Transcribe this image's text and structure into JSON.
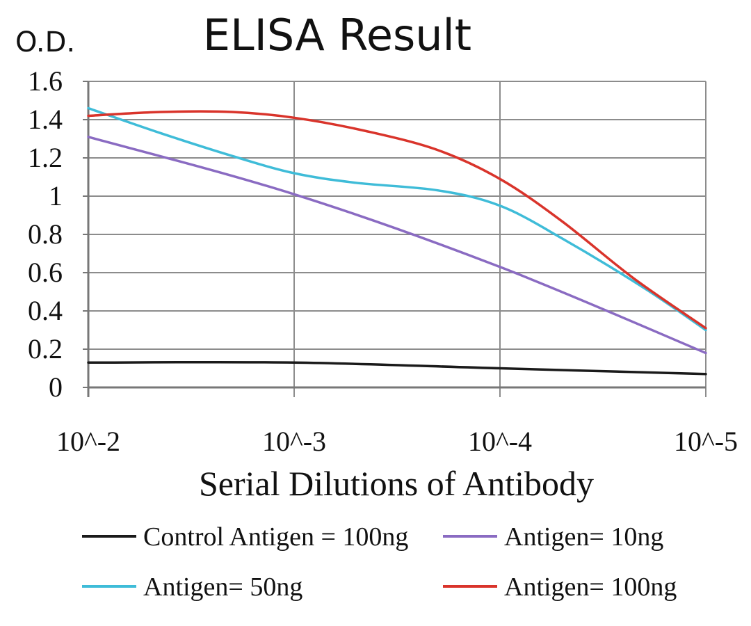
{
  "chart_data": {
    "type": "line",
    "title": "ELISA Result",
    "ylabel": "O.D.",
    "xlabel": "Serial Dilutions of Antibody",
    "categories": [
      "10^-2",
      "10^-3",
      "10^-4",
      "10^-5"
    ],
    "y_ticks": [
      "0",
      "0.2",
      "0.4",
      "0.6",
      "0.8",
      "1",
      "1.2",
      "1.4",
      "1.6"
    ],
    "ylim": [
      0,
      1.6
    ],
    "grid": true,
    "legend_position": "bottom",
    "series": [
      {
        "name": "Control Antigen = 100ng",
        "color": "#1a1a1a",
        "x": [
          0,
          1,
          2,
          3
        ],
        "values": [
          0.13,
          0.13,
          0.1,
          0.07
        ]
      },
      {
        "name": "Antigen= 10ng",
        "color": "#8a6bc2",
        "x": [
          0,
          1,
          2,
          3
        ],
        "values": [
          1.31,
          1.01,
          0.63,
          0.18
        ]
      },
      {
        "name": "Antigen= 50ng",
        "color": "#3fbcd8",
        "x": [
          0,
          0.35,
          0.7,
          1,
          1.3,
          1.7,
          2,
          2.3,
          2.7,
          3
        ],
        "values": [
          1.46,
          1.33,
          1.21,
          1.12,
          1.07,
          1.03,
          0.95,
          0.78,
          0.52,
          0.3
        ]
      },
      {
        "name": "Antigen= 100ng",
        "color": "#d9342b",
        "x": [
          0,
          0.35,
          0.7,
          1,
          1.35,
          1.7,
          2,
          2.3,
          2.65,
          3
        ],
        "values": [
          1.42,
          1.44,
          1.44,
          1.41,
          1.34,
          1.24,
          1.09,
          0.87,
          0.57,
          0.31
        ]
      }
    ]
  }
}
